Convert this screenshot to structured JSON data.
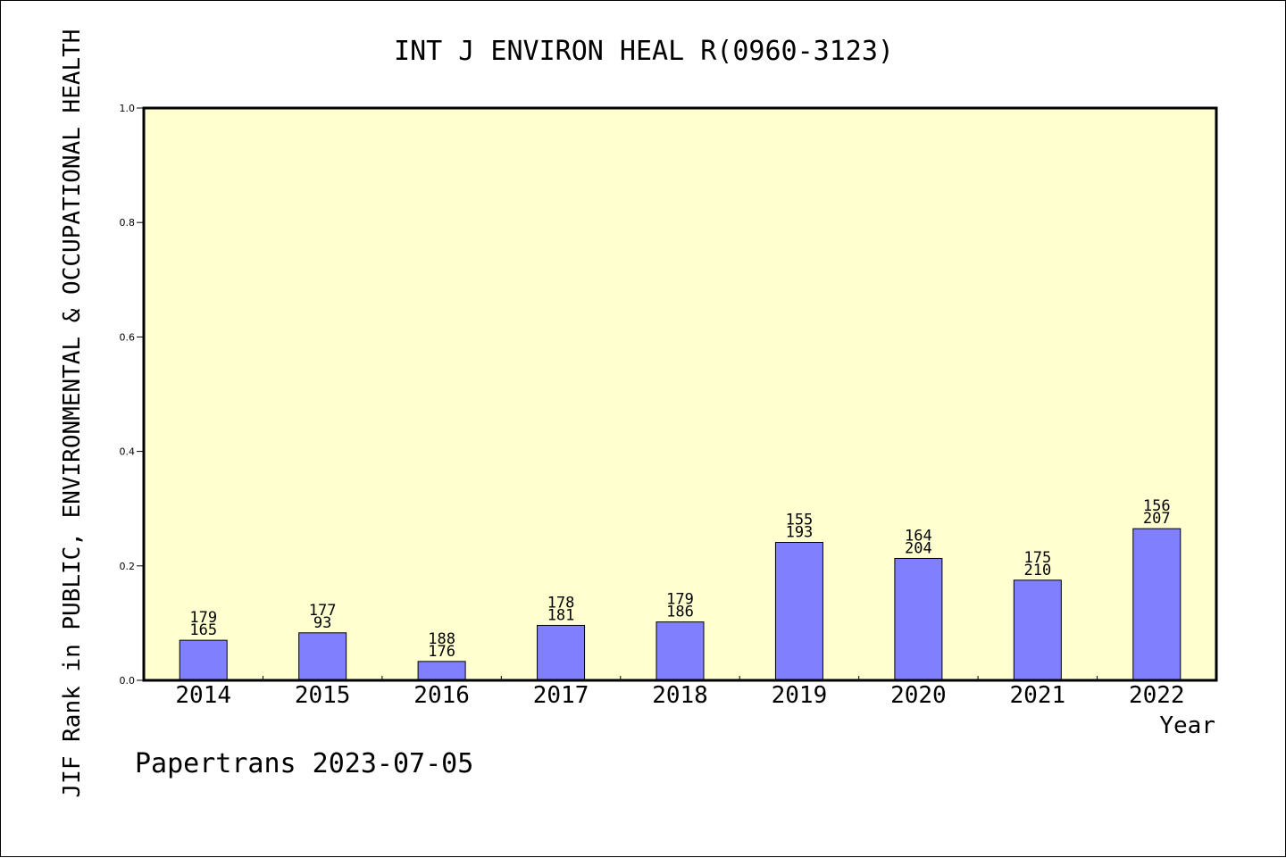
{
  "chart_data": {
    "type": "bar",
    "title": "INT J ENVIRON HEAL R(0960-3123)",
    "ylabel": "JIF Rank in PUBLIC, ENVIRONMENTAL & OCCUPATIONAL HEALTH",
    "xlabel": "Year",
    "categories": [
      "2014",
      "2015",
      "2016",
      "2017",
      "2018",
      "2019",
      "2020",
      "2021",
      "2022"
    ],
    "values": [
      0.07,
      0.083,
      0.033,
      0.096,
      0.102,
      0.241,
      0.213,
      0.175,
      0.265
    ],
    "labels_top": [
      "179",
      "177",
      "188",
      "178",
      "179",
      "155",
      "164",
      "175",
      "156"
    ],
    "labels_bottom": [
      "165",
      "93",
      "176",
      "181",
      "186",
      "193",
      "204",
      "210",
      "207"
    ],
    "ylim": [
      0,
      1.0
    ],
    "yticks": [
      "0.0",
      "0.2",
      "0.4",
      "0.6",
      "0.8",
      "1.0"
    ],
    "grid": false,
    "colors": {
      "plot_bg": "#ffffd0",
      "bar": "#8080ff"
    }
  },
  "footer": "Papertrans 2023-07-05"
}
